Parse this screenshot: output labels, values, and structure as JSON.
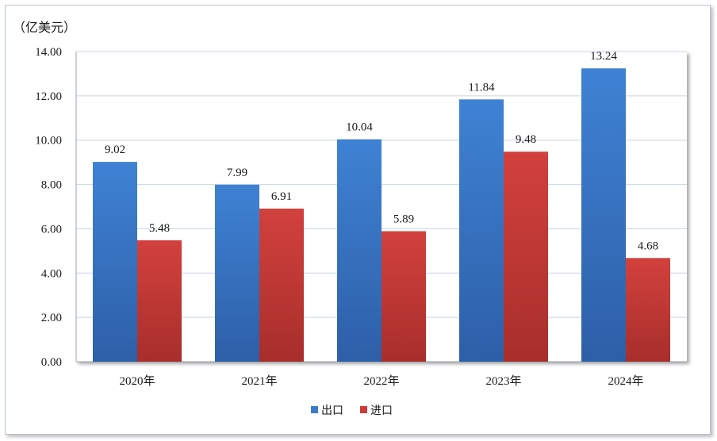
{
  "chart_data": {
    "type": "bar",
    "unit_label": "（亿美元）",
    "categories": [
      "2020年",
      "2021年",
      "2022年",
      "2023年",
      "2024年"
    ],
    "series": [
      {
        "name": "出口",
        "values": [
          9.02,
          7.99,
          10.04,
          11.84,
          13.24
        ],
        "labels": [
          "9.02",
          "7.99",
          "10.04",
          "11.84",
          "13.24"
        ],
        "color": "#3b7ccc"
      },
      {
        "name": "进口",
        "values": [
          5.48,
          6.91,
          5.89,
          9.48,
          4.68
        ],
        "labels": [
          "5.48",
          "6.91",
          "5.89",
          "9.48",
          "4.68"
        ],
        "color": "#cc3b37"
      }
    ],
    "ylim": [
      0,
      14
    ],
    "yticks": [
      "0.00",
      "2.00",
      "4.00",
      "6.00",
      "8.00",
      "10.00",
      "12.00",
      "14.00"
    ],
    "grid": true,
    "legend_position": "bottom"
  }
}
